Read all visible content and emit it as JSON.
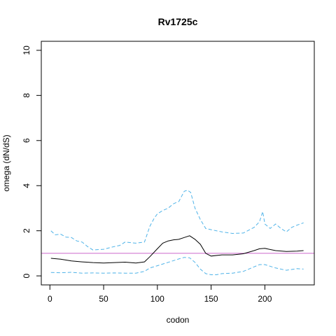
{
  "chart_data": {
    "type": "line",
    "title": "Rv1725c",
    "xlabel": "codon",
    "ylabel": "omega (dN/dS)",
    "xlim": [
      -8,
      246
    ],
    "ylim": [
      -0.4,
      10.4
    ],
    "xticks": [
      0,
      50,
      100,
      150,
      200
    ],
    "yticks": [
      0,
      2,
      4,
      6,
      8,
      10
    ],
    "reference_line": {
      "y": 1,
      "color": "#cc66cc"
    },
    "colors": {
      "mean": "#000000",
      "bounds": "#4fb3e8"
    },
    "series": [
      {
        "style": "solid",
        "x": [
          1,
          10,
          20,
          30,
          40,
          50,
          60,
          70,
          80,
          88,
          93,
          100,
          105,
          110,
          115,
          120,
          125,
          130,
          135,
          140,
          145,
          150,
          160,
          170,
          180,
          190,
          195,
          200,
          210,
          220,
          230,
          236
        ],
        "y": [
          0.78,
          0.74,
          0.66,
          0.62,
          0.59,
          0.57,
          0.59,
          0.61,
          0.57,
          0.62,
          0.85,
          1.2,
          1.45,
          1.55,
          1.6,
          1.62,
          1.7,
          1.78,
          1.62,
          1.4,
          1.0,
          0.88,
          0.93,
          0.93,
          0.98,
          1.12,
          1.2,
          1.22,
          1.12,
          1.08,
          1.1,
          1.12
        ]
      },
      {
        "style": "dashed",
        "x": [
          1,
          5,
          10,
          15,
          20,
          25,
          30,
          35,
          40,
          50,
          60,
          65,
          70,
          80,
          88,
          93,
          97,
          100,
          105,
          110,
          115,
          120,
          125,
          128,
          131,
          135,
          140,
          145,
          150,
          160,
          170,
          180,
          190,
          195,
          198,
          200,
          205,
          210,
          215,
          220,
          225,
          230,
          236
        ],
        "y": [
          2.0,
          1.82,
          1.85,
          1.72,
          1.7,
          1.55,
          1.5,
          1.3,
          1.15,
          1.18,
          1.3,
          1.35,
          1.5,
          1.45,
          1.5,
          2.2,
          2.55,
          2.75,
          2.9,
          3.0,
          3.2,
          3.3,
          3.75,
          3.8,
          3.7,
          3.0,
          2.5,
          2.1,
          2.05,
          1.95,
          1.88,
          1.9,
          2.15,
          2.4,
          2.85,
          2.3,
          2.1,
          2.3,
          2.1,
          1.95,
          2.15,
          2.25,
          2.35
        ]
      },
      {
        "style": "dashed",
        "x": [
          1,
          10,
          20,
          30,
          40,
          50,
          60,
          70,
          80,
          88,
          93,
          100,
          110,
          120,
          125,
          130,
          135,
          140,
          145,
          150,
          155,
          160,
          170,
          180,
          190,
          195,
          200,
          210,
          220,
          230,
          236
        ],
        "y": [
          0.15,
          0.14,
          0.16,
          0.12,
          0.13,
          0.12,
          0.13,
          0.12,
          0.12,
          0.2,
          0.35,
          0.45,
          0.6,
          0.75,
          0.82,
          0.8,
          0.6,
          0.3,
          0.1,
          0.05,
          0.05,
          0.1,
          0.12,
          0.2,
          0.4,
          0.5,
          0.5,
          0.35,
          0.25,
          0.32,
          0.3
        ]
      }
    ]
  }
}
